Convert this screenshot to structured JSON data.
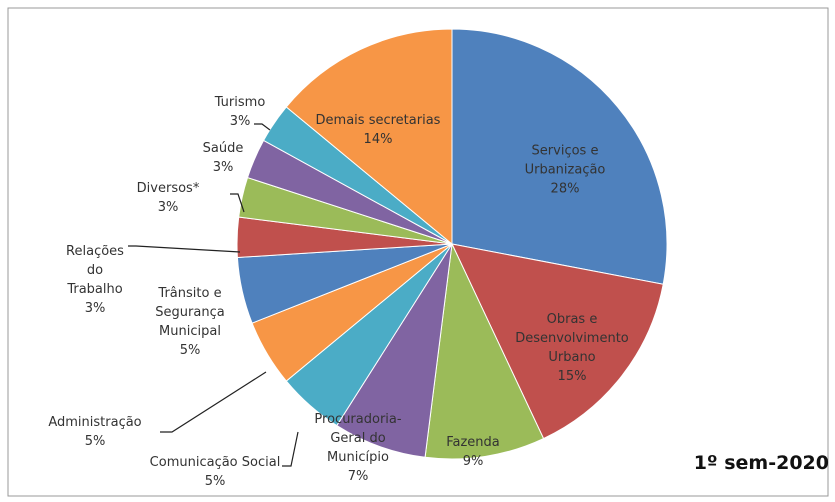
{
  "chart_data": {
    "type": "pie",
    "subtitle": "1º sem-2020",
    "categories": [
      "Serviços e Urbanização",
      "Obras e Desenvolvimento Urbano",
      "Fazenda",
      "Procuradoria-Geral do Município",
      "Comunicação Social",
      "Administração",
      "Trânsito e Segurança Municipal",
      "Relações do Trabalho",
      "Diversos*",
      "Saúde",
      "Turismo",
      "Demais secretarias"
    ],
    "values": [
      28,
      15,
      9,
      7,
      5,
      5,
      5,
      3,
      3,
      3,
      3,
      14
    ],
    "value_labels": [
      "28%",
      "15%",
      "9%",
      "7%",
      "5%",
      "5%",
      "5%",
      "3%",
      "3%",
      "3%",
      "3%",
      "14%"
    ],
    "colors": [
      "#4f81bd",
      "#c0504d",
      "#9bbb59",
      "#8064a2",
      "#4bacc6",
      "#f79646",
      "#4f81bd",
      "#c0504d",
      "#9bbb59",
      "#8064a2",
      "#4bacc6",
      "#f79646"
    ]
  }
}
